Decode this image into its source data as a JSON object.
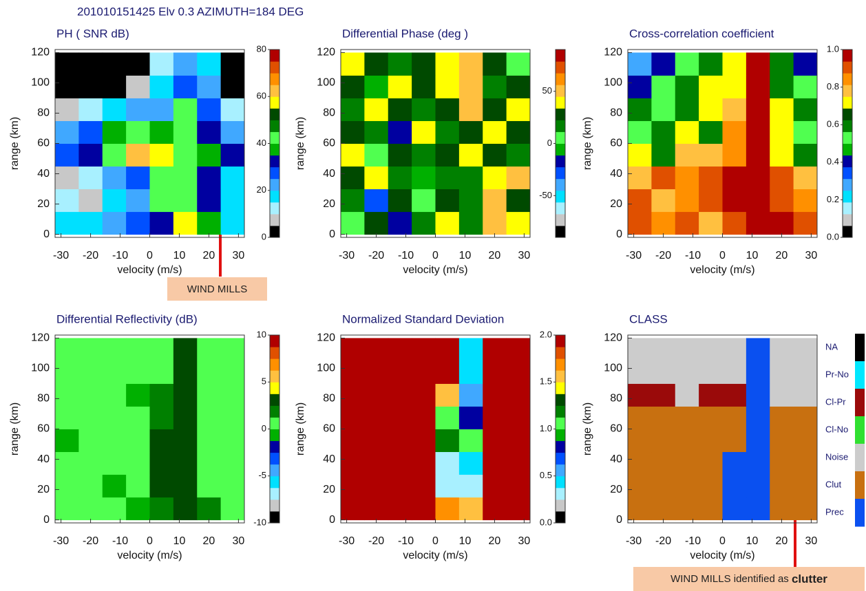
{
  "title": "201010151425 Elv  0.3  AZIMUTH=184 DEG",
  "annotations": [
    {
      "text": "WIND MILLS"
    },
    {
      "text": "WIND MILLS identified as",
      "emphasis": "clutter"
    }
  ],
  "chart_data": [
    {
      "type": "heatmap",
      "title": "PH ( SNR dB)",
      "x_label": "velocity (m/s)",
      "y_label": "range (km)",
      "x_bins": [
        -32,
        -24,
        -16,
        -8,
        0,
        8,
        16,
        24,
        32
      ],
      "y_bins": [
        0,
        15,
        30,
        45,
        60,
        75,
        90,
        105,
        120
      ],
      "xlim": [
        -32,
        32
      ],
      "ylim": [
        -2,
        122
      ],
      "xticks": [
        -30,
        -20,
        -10,
        0,
        10,
        20,
        30
      ],
      "yticks": [
        0,
        20,
        40,
        60,
        80,
        100,
        120
      ],
      "zlim": [
        0,
        80
      ],
      "zticks": [
        0,
        20,
        40,
        60,
        80
      ],
      "colormap": [
        "#000000",
        "#c8c8c8",
        "#a8f0ff",
        "#00e0ff",
        "#40a8ff",
        "#0050ff",
        "#0000a0",
        "#00b000",
        "#50ff50",
        "#008000",
        "#004a00",
        "#ffff00",
        "#ffc040",
        "#ff9000",
        "#e05000",
        "#b00000"
      ],
      "values": [
        [
          15,
          15,
          20,
          25,
          30,
          55,
          35,
          15
        ],
        [
          10,
          5,
          15,
          20,
          40,
          40,
          30,
          15
        ],
        [
          5,
          10,
          20,
          25,
          40,
          40,
          30,
          15
        ],
        [
          25,
          30,
          40,
          60,
          55,
          40,
          35,
          30
        ],
        [
          20,
          25,
          35,
          40,
          35,
          40,
          30,
          20
        ],
        [
          5,
          10,
          15,
          20,
          20,
          40,
          25,
          10
        ],
        [
          0,
          0,
          0,
          5,
          15,
          25,
          20,
          0
        ],
        [
          0,
          0,
          0,
          0,
          10,
          20,
          15,
          0
        ]
      ]
    },
    {
      "type": "heatmap",
      "title": "Differential Phase (deg )",
      "x_label": "velocity (m/s)",
      "y_label": "range (km)",
      "x_bins": [
        -32,
        -24,
        -16,
        -8,
        0,
        8,
        16,
        24,
        32
      ],
      "y_bins": [
        0,
        15,
        30,
        45,
        60,
        75,
        90,
        105,
        120
      ],
      "xlim": [
        -32,
        32
      ],
      "ylim": [
        -2,
        122
      ],
      "xticks": [
        -30,
        -20,
        -10,
        0,
        10,
        20,
        30
      ],
      "yticks": [
        0,
        20,
        40,
        60,
        80,
        100,
        120
      ],
      "zlim": [
        -90,
        90
      ],
      "zticks": [
        -50,
        0,
        50
      ],
      "colormap": [
        "#000000",
        "#c8c8c8",
        "#a8f0ff",
        "#00e0ff",
        "#40a8ff",
        "#0050ff",
        "#0000a0",
        "#00b000",
        "#50ff50",
        "#008000",
        "#004a00",
        "#ffff00",
        "#ffc040",
        "#ff9000",
        "#e05000",
        "#b00000"
      ],
      "values": [
        [
          10,
          30,
          -20,
          20,
          40,
          15,
          50,
          40
        ],
        [
          20,
          -30,
          30,
          10,
          30,
          15,
          50,
          30
        ],
        [
          30,
          40,
          20,
          -10,
          20,
          15,
          40,
          50
        ],
        [
          40,
          10,
          30,
          20,
          30,
          40,
          30,
          20
        ],
        [
          30,
          20,
          -20,
          40,
          20,
          30,
          40,
          30
        ],
        [
          20,
          40,
          30,
          20,
          30,
          45,
          30,
          40
        ],
        [
          30,
          -10,
          40,
          30,
          40,
          45,
          20,
          30
        ],
        [
          40,
          30,
          20,
          30,
          40,
          45,
          30,
          10
        ]
      ]
    },
    {
      "type": "heatmap",
      "title": "Cross-correlation coefficient",
      "x_label": "velocity (m/s)",
      "y_label": "range (km)",
      "x_bins": [
        -32,
        -24,
        -16,
        -8,
        0,
        8,
        16,
        24,
        32
      ],
      "y_bins": [
        0,
        15,
        30,
        45,
        60,
        75,
        90,
        105,
        120
      ],
      "xlim": [
        -32,
        32
      ],
      "ylim": [
        -2,
        122
      ],
      "xticks": [
        -30,
        -20,
        -10,
        0,
        10,
        20,
        30
      ],
      "yticks": [
        0,
        20,
        40,
        60,
        80,
        100,
        120
      ],
      "zlim": [
        0,
        1
      ],
      "zticks": [
        {
          "value": 0,
          "label": "0.0"
        },
        {
          "value": 0.2,
          "label": "0.2"
        },
        {
          "value": 0.4,
          "label": "0.4"
        },
        {
          "value": 0.6,
          "label": "0.6"
        },
        {
          "value": 0.8,
          "label": "0.8"
        },
        {
          "value": 1,
          "label": "1.0"
        }
      ],
      "colormap": [
        "#000000",
        "#c8c8c8",
        "#a8f0ff",
        "#00e0ff",
        "#40a8ff",
        "#0050ff",
        "#0000a0",
        "#00b000",
        "#50ff50",
        "#008000",
        "#004a00",
        "#ffff00",
        "#ffc040",
        "#ff9000",
        "#e05000",
        "#b00000"
      ],
      "values": [
        [
          0.9,
          0.85,
          0.9,
          0.8,
          0.9,
          0.98,
          0.95,
          0.9
        ],
        [
          0.9,
          0.8,
          0.85,
          0.9,
          0.98,
          0.98,
          0.9,
          0.85
        ],
        [
          0.8,
          0.9,
          0.85,
          0.9,
          0.95,
          0.98,
          0.9,
          0.8
        ],
        [
          0.7,
          0.6,
          0.75,
          0.8,
          0.85,
          0.95,
          0.7,
          0.6
        ],
        [
          0.5,
          0.6,
          0.7,
          0.6,
          0.85,
          0.95,
          0.7,
          0.5
        ],
        [
          0.6,
          0.5,
          0.6,
          0.7,
          0.8,
          0.98,
          0.7,
          0.6
        ],
        [
          0.4,
          0.5,
          0.6,
          0.7,
          0.7,
          0.98,
          0.6,
          0.5
        ],
        [
          0.3,
          0.4,
          0.5,
          0.6,
          0.7,
          0.98,
          0.6,
          0.4
        ]
      ]
    },
    {
      "type": "heatmap",
      "title": "Differential Reflectivity (dB)",
      "x_label": "velocity (m/s)",
      "y_label": "range (km)",
      "x_bins": [
        -32,
        -24,
        -16,
        -8,
        0,
        8,
        16,
        24,
        32
      ],
      "y_bins": [
        0,
        15,
        30,
        45,
        60,
        75,
        90,
        105,
        120
      ],
      "xlim": [
        -32,
        32
      ],
      "ylim": [
        -2,
        122
      ],
      "xticks": [
        -30,
        -20,
        -10,
        0,
        10,
        20,
        30
      ],
      "yticks": [
        0,
        20,
        40,
        60,
        80,
        100,
        120
      ],
      "zlim": [
        -10,
        10
      ],
      "zticks": [
        -10,
        -5,
        0,
        5,
        10
      ],
      "colormap": [
        "#000000",
        "#c8c8c8",
        "#a8f0ff",
        "#00e0ff",
        "#40a8ff",
        "#0050ff",
        "#0000a0",
        "#00b000",
        "#50ff50",
        "#008000",
        "#004a00",
        "#ffff00",
        "#ffc040",
        "#ff9000",
        "#e05000",
        "#b00000"
      ],
      "values": [
        [
          0,
          1,
          0,
          -1,
          2,
          3,
          2,
          0
        ],
        [
          1,
          0,
          -1,
          0,
          3,
          3,
          1,
          0
        ],
        [
          0,
          1,
          0,
          1,
          3,
          3,
          1,
          1
        ],
        [
          -1,
          0,
          1,
          0,
          3,
          3,
          0,
          1
        ],
        [
          0,
          1,
          0,
          0,
          2,
          3,
          1,
          0
        ],
        [
          1,
          0,
          1,
          -1,
          2,
          3,
          0,
          1
        ],
        [
          0,
          1,
          0,
          1,
          1,
          3,
          1,
          0
        ],
        [
          1,
          0,
          1,
          0,
          1,
          3,
          0,
          1
        ]
      ]
    },
    {
      "type": "heatmap",
      "title": "Normalized Standard Deviation",
      "x_label": "velocity (m/s)",
      "y_label": "range (km)",
      "x_bins": [
        -32,
        -24,
        -16,
        -8,
        0,
        8,
        16,
        24,
        32
      ],
      "y_bins": [
        0,
        15,
        30,
        45,
        60,
        75,
        90,
        105,
        120
      ],
      "xlim": [
        -32,
        32
      ],
      "ylim": [
        -2,
        122
      ],
      "xticks": [
        -30,
        -20,
        -10,
        0,
        10,
        20,
        30
      ],
      "yticks": [
        0,
        20,
        40,
        60,
        80,
        100,
        120
      ],
      "zlim": [
        0,
        2
      ],
      "zticks": [
        {
          "value": 0,
          "label": "0.0"
        },
        {
          "value": 0.5,
          "label": "0.5"
        },
        {
          "value": 1,
          "label": "1.0"
        },
        {
          "value": 1.5,
          "label": "1.5"
        },
        {
          "value": 2,
          "label": "2.0"
        }
      ],
      "colormap": [
        "#000000",
        "#c8c8c8",
        "#a8f0ff",
        "#00e0ff",
        "#40a8ff",
        "#0050ff",
        "#0000a0",
        "#00b000",
        "#50ff50",
        "#008000",
        "#004a00",
        "#ffff00",
        "#ffc040",
        "#ff9000",
        "#e05000",
        "#b00000"
      ],
      "values": [
        [
          1.9,
          1.9,
          2,
          1.9,
          1.7,
          1.5,
          1.9,
          2
        ],
        [
          2,
          1.9,
          1.9,
          1.9,
          0.3,
          0.3,
          1.9,
          1.9
        ],
        [
          1.9,
          2,
          1.9,
          1.9,
          0.3,
          0.4,
          1.9,
          2
        ],
        [
          2,
          1.9,
          2,
          1.9,
          1.2,
          1,
          1.9,
          1.9
        ],
        [
          1.9,
          2,
          1.9,
          1.9,
          1.1,
          0.8,
          1.9,
          2
        ],
        [
          2,
          1.9,
          2,
          1.9,
          1.5,
          0.6,
          1.9,
          1.9
        ],
        [
          1.9,
          2,
          1.9,
          2,
          1.9,
          0.4,
          1.9,
          2
        ],
        [
          2,
          1.9,
          2,
          1.9,
          1.9,
          0.4,
          1.9,
          1.9
        ]
      ]
    },
    {
      "type": "classmap",
      "title": "CLASS",
      "x_label": "velocity (m/s)",
      "y_label": "range (km)",
      "x_bins": [
        -32,
        -24,
        -16,
        -8,
        0,
        8,
        16,
        24,
        32
      ],
      "y_bins": [
        0,
        15,
        30,
        45,
        60,
        75,
        90,
        105,
        120
      ],
      "xlim": [
        -32,
        32
      ],
      "ylim": [
        -2,
        122
      ],
      "xticks": [
        -30,
        -20,
        -10,
        0,
        10,
        20,
        30
      ],
      "yticks": [
        0,
        20,
        40,
        60,
        80,
        100,
        120
      ],
      "classes": [
        {
          "name": "NA",
          "color": "#000000"
        },
        {
          "name": "Pr-No",
          "color": "#00e8ff"
        },
        {
          "name": "Cl-Pr",
          "color": "#9a0a0a"
        },
        {
          "name": "Cl-No",
          "color": "#30e030"
        },
        {
          "name": "Noise",
          "color": "#cccccc"
        },
        {
          "name": "Clut",
          "color": "#c87010"
        },
        {
          "name": "Prec",
          "color": "#0a50f0"
        }
      ],
      "values": [
        [
          5,
          5,
          5,
          5,
          6,
          6,
          5,
          5
        ],
        [
          5,
          5,
          5,
          5,
          6,
          6,
          5,
          5
        ],
        [
          5,
          5,
          5,
          5,
          6,
          6,
          5,
          5
        ],
        [
          5,
          5,
          5,
          5,
          5,
          6,
          5,
          5
        ],
        [
          5,
          5,
          5,
          5,
          5,
          6,
          5,
          5
        ],
        [
          2,
          2,
          4,
          2,
          2,
          6,
          4,
          4
        ],
        [
          4,
          4,
          4,
          4,
          4,
          6,
          4,
          4
        ],
        [
          4,
          4,
          4,
          4,
          4,
          6,
          4,
          4
        ]
      ]
    }
  ]
}
